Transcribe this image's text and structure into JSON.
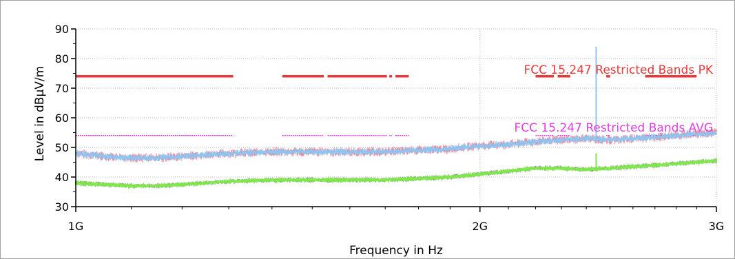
{
  "chart_data": {
    "type": "line",
    "xlabel": "Frequency in Hz",
    "ylabel": "Level in dBµV/m",
    "x_scale": "log",
    "xlim": [
      1000000000,
      3000000000
    ],
    "ylim": [
      30,
      90
    ],
    "x_ticks": [
      {
        "value": 1000000000,
        "label": "1G"
      },
      {
        "value": 2000000000,
        "label": "2G"
      },
      {
        "value": 3000000000,
        "label": "3G"
      }
    ],
    "y_ticks": [
      30,
      40,
      50,
      60,
      70,
      80,
      90
    ],
    "grid": true,
    "colors": {
      "pk_limit": "#e8383a",
      "avg_limit": "#e040e0",
      "peak_trace": "#8ec5f0",
      "peak_trace_edge": "#e04060",
      "avg_trace": "#7ee84a",
      "avg_trace_edge": "#303030",
      "marker": "#8ec5f0",
      "marker_avg": "#7ee84a",
      "grid": "#b8b8b8"
    },
    "limit_lines": [
      {
        "name": "FCC 15.247 Restricted Bands PK",
        "level": 74,
        "segments": [
          [
            1000000000,
            1310000000
          ],
          [
            1425000000,
            1530000000
          ],
          [
            1540000000,
            1705000000
          ],
          [
            1712000000,
            1720000000
          ],
          [
            1730000000,
            1770000000
          ],
          [
            2200000000,
            2270000000
          ],
          [
            2285000000,
            2335000000
          ],
          [
            2483500000,
            2500000000
          ],
          [
            2655000000,
            2900000000
          ]
        ]
      },
      {
        "name": "FCC 15.247 Restricted Bands AVG",
        "level": 54,
        "segments": [
          [
            1000000000,
            1310000000
          ],
          [
            1425000000,
            1530000000
          ],
          [
            1540000000,
            1705000000
          ],
          [
            1712000000,
            1720000000
          ],
          [
            1730000000,
            1770000000
          ],
          [
            2200000000,
            2270000000
          ],
          [
            2285000000,
            2335000000
          ],
          [
            2483500000,
            2500000000
          ],
          [
            2655000000,
            2900000000
          ]
        ]
      }
    ],
    "series": [
      {
        "key": "peak",
        "x": [
          1000000000,
          1050000000,
          1100000000,
          1150000000,
          1200000000,
          1300000000,
          1400000000,
          1500000000,
          1600000000,
          1700000000,
          1800000000,
          1900000000,
          2000000000,
          2100000000,
          2200000000,
          2300000000,
          2400000000,
          2500000000,
          2600000000,
          2700000000,
          2800000000,
          2900000000,
          3000000000
        ],
        "y": [
          48,
          47,
          46.5,
          46.5,
          47,
          48,
          48.5,
          48.5,
          48.5,
          48.5,
          49,
          49.5,
          50.5,
          51,
          52,
          52.5,
          53,
          52.5,
          53,
          53.5,
          54,
          54.5,
          55
        ]
      },
      {
        "key": "average",
        "x": [
          1000000000,
          1050000000,
          1100000000,
          1150000000,
          1200000000,
          1300000000,
          1400000000,
          1500000000,
          1600000000,
          1700000000,
          1800000000,
          1900000000,
          2000000000,
          2100000000,
          2200000000,
          2300000000,
          2400000000,
          2500000000,
          2600000000,
          2700000000,
          2800000000,
          2900000000,
          3000000000
        ],
        "y": [
          38,
          37.5,
          37,
          37,
          37.5,
          38.5,
          39,
          39,
          39,
          39,
          39.5,
          40,
          41,
          42,
          43,
          43,
          42.5,
          43,
          43.5,
          44,
          44.5,
          45,
          45.5
        ]
      }
    ],
    "marker": {
      "x": 2441000000,
      "peak_top": 84,
      "avg_top": 48
    }
  }
}
